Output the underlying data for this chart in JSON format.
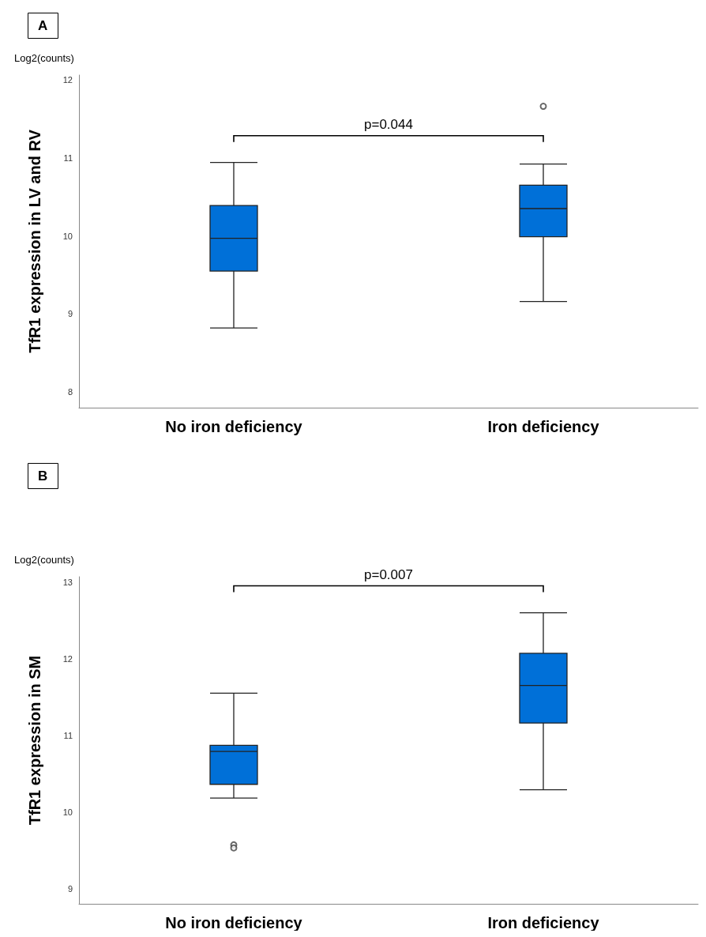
{
  "chart_data": [
    {
      "type": "box",
      "title": "A",
      "ylabel": "TfR1 expression in LV and RV",
      "annotations": [
        "Log2(counts)",
        "p=0.044"
      ],
      "categories": [
        "No iron deficiency",
        "Iron deficiency"
      ],
      "color": "#0070d8",
      "marker": "circle",
      "grid": false,
      "ylim": [
        7.8,
        12.06
      ],
      "yticks": [
        8,
        9,
        10,
        11,
        12
      ],
      "boxes": [
        {
          "low": 8.82,
          "q1": 9.55,
          "median": 9.97,
          "q3": 10.39,
          "high": 10.94
        },
        {
          "low": 9.16,
          "q1": 9.99,
          "median": 10.35,
          "q3": 10.65,
          "high": 10.92,
          "outliers": [
            11.66
          ]
        }
      ]
    },
    {
      "type": "box",
      "title": "B",
      "ylabel": "TfR1 expression in SM",
      "annotations": [
        "Log2(counts)",
        "p=0.007"
      ],
      "categories": [
        "No iron deficiency",
        "Iron deficiency"
      ],
      "color": "#0070d8",
      "marker": "circle",
      "grid": false,
      "ylim": [
        8.8,
        13.07
      ],
      "yticks": [
        9,
        10,
        11,
        12,
        13
      ],
      "boxes": [
        {
          "low": 10.18,
          "q1": 10.36,
          "median": 10.79,
          "q3": 10.87,
          "high": 11.55,
          "outliers": [
            9.57,
            9.53
          ]
        },
        {
          "low": 10.29,
          "q1": 11.16,
          "median": 11.65,
          "q3": 12.07,
          "high": 12.6
        }
      ]
    }
  ]
}
